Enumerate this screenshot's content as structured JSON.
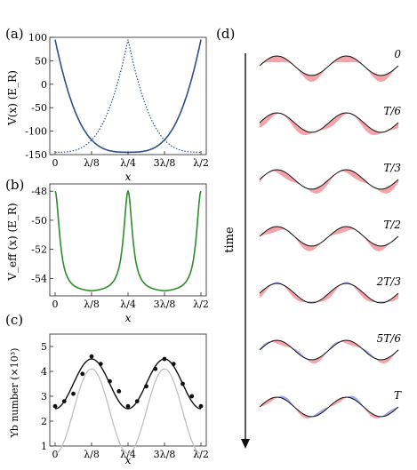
{
  "panel_labels": {
    "a": "(a)",
    "b": "(b)",
    "c": "(c)",
    "d": "(d)"
  },
  "chart_data": [
    {
      "panel": "a",
      "type": "line",
      "xlabel": "x",
      "ylabel": "V(x) (E_R)",
      "ylim": [
        -150,
        100
      ],
      "y_ticks": [
        100,
        50,
        0,
        -50,
        -100,
        -150
      ],
      "x_ticks": [
        "0",
        "λ/8",
        "λ/4",
        "3λ/8",
        "λ/2"
      ],
      "series": [
        {
          "style": "solid",
          "color": "#2f4f8a",
          "x": [
            0,
            0.0625,
            0.125,
            0.1875,
            0.25,
            0.3125,
            0.375,
            0.4375,
            0.5
          ],
          "y": [
            95,
            10,
            -80,
            -130,
            -145,
            -130,
            -80,
            10,
            95
          ]
        },
        {
          "style": "dotted",
          "color": "#2f4f8a",
          "x": [
            0,
            0.0625,
            0.125,
            0.1875,
            0.25,
            0.3125,
            0.375,
            0.4375,
            0.5
          ],
          "y": [
            -145,
            -130,
            -80,
            10,
            95,
            10,
            -80,
            -130,
            -145
          ]
        }
      ]
    },
    {
      "panel": "b",
      "type": "line",
      "xlabel": "x",
      "ylabel": "V_eff (x) (E_R)",
      "ylim": [
        -55.2,
        -47.5
      ],
      "y_ticks": [
        -48,
        -50,
        -52,
        -54
      ],
      "x_ticks": [
        "0",
        "λ/8",
        "λ/4",
        "3λ/8",
        "λ/2"
      ],
      "series": [
        {
          "style": "solid",
          "color": "#2e8b2e",
          "x": [
            0,
            0.0625,
            0.125,
            0.1875,
            0.25,
            0.3125,
            0.375,
            0.4375,
            0.5
          ],
          "y": [
            -48,
            -54.5,
            -55,
            -54.5,
            -48,
            -54.5,
            -55,
            -54.5,
            -48
          ]
        }
      ]
    },
    {
      "panel": "c",
      "type": "scatter",
      "xlabel": "x",
      "ylabel": "Yb number (×10³)",
      "ylim": [
        1,
        5.5
      ],
      "y_ticks": [
        1,
        2,
        3,
        4,
        5
      ],
      "x_ticks": [
        "0",
        "λ/8",
        "λ/4",
        "3λ/8",
        "λ/2"
      ],
      "points": {
        "x": [
          0,
          0.03125,
          0.0625,
          0.09375,
          0.125,
          0.15625,
          0.1875,
          0.21875,
          0.25,
          0.28125,
          0.3125,
          0.34375,
          0.375,
          0.40625,
          0.4375,
          0.46875,
          0.5
        ],
        "y": [
          2.6,
          2.8,
          3.1,
          3.9,
          4.6,
          4.3,
          3.6,
          3.2,
          2.6,
          2.8,
          3.4,
          4.1,
          4.5,
          4.3,
          3.5,
          3.0,
          2.6
        ]
      },
      "fit": {
        "style": "solid",
        "color": "#111111",
        "mean": 3.5,
        "amplitude": 1.0
      },
      "reference": {
        "style": "solid",
        "color": "#bbbbbb",
        "mean": 2.4,
        "amplitude": 1.7
      }
    }
  ],
  "panel_d": {
    "time_label": "time",
    "frame_labels": [
      "0",
      "T/6",
      "T/3",
      "T/2",
      "2T/3",
      "5T/6",
      "T"
    ],
    "colors": {
      "positive": "#f4a3a8",
      "negative": "#a3a8f0",
      "line": "#111111"
    }
  }
}
